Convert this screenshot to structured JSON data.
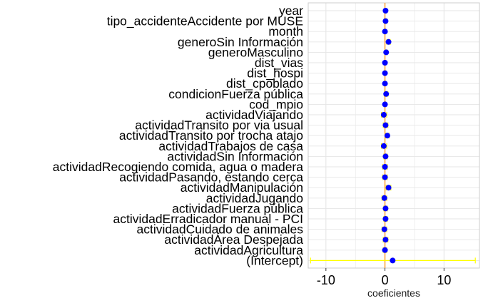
{
  "chart_data": {
    "type": "dot-whisker",
    "title": "",
    "xlabel": "coeficientes",
    "ylabel": "",
    "xlim": [
      -13,
      16
    ],
    "x_ticks": [
      -10,
      0,
      10
    ],
    "x_tick_labels": [
      "-10",
      "0",
      "10"
    ],
    "grid": true,
    "legend": "none",
    "reference_line_x": 0,
    "colors": {
      "point": "#0000ff",
      "interval": "#ffff00",
      "reference_line": "#ff8c00",
      "grid": "#e6e6e6",
      "panel_border": "#cccccc"
    },
    "terms": [
      {
        "label": "year",
        "estimate": 0.1,
        "low": 0.0,
        "high": 0.2
      },
      {
        "label": "tipo_accidenteAccidente por MUSE",
        "estimate": 0.1,
        "low": -0.1,
        "high": 0.3
      },
      {
        "label": "month",
        "estimate": 0.0,
        "low": -0.1,
        "high": 0.1
      },
      {
        "label": "generoSin Información",
        "estimate": 0.6,
        "low": 0.3,
        "high": 0.9
      },
      {
        "label": "generoMasculino",
        "estimate": 0.2,
        "low": 0.0,
        "high": 0.4
      },
      {
        "label": "dist_vias",
        "estimate": 0.0,
        "low": -0.1,
        "high": 0.1
      },
      {
        "label": "dist_hospi",
        "estimate": 0.0,
        "low": -0.1,
        "high": 0.1
      },
      {
        "label": "dist_cpoblado",
        "estimate": 0.0,
        "low": -0.1,
        "high": 0.1
      },
      {
        "label": "condicionFuerza pública",
        "estimate": 0.2,
        "low": -0.1,
        "high": 0.5
      },
      {
        "label": "cod_mpio",
        "estimate": 0.0,
        "low": -0.1,
        "high": 0.1
      },
      {
        "label": "actividadViajando",
        "estimate": -0.2,
        "low": -0.6,
        "high": 0.3
      },
      {
        "label": "actividadTransito por via usual",
        "estimate": 0.1,
        "low": -0.3,
        "high": 0.5
      },
      {
        "label": "actividadTransito por trocha atajo",
        "estimate": 0.4,
        "low": 0.1,
        "high": 0.7
      },
      {
        "label": "actividadTrabajos de casa",
        "estimate": -0.2,
        "low": -0.6,
        "high": 0.3
      },
      {
        "label": "actividadSin Información",
        "estimate": 0.1,
        "low": -0.2,
        "high": 0.4
      },
      {
        "label": "actividadRecogiendo comida, agua o  madera",
        "estimate": 0.0,
        "low": -0.4,
        "high": 0.4
      },
      {
        "label": "actividadPasando, estando cerca",
        "estimate": 0.0,
        "low": -0.4,
        "high": 0.4
      },
      {
        "label": "actividadManipulación",
        "estimate": 0.6,
        "low": 0.2,
        "high": 1.0
      },
      {
        "label": "actividadJugando",
        "estimate": -0.1,
        "low": -0.5,
        "high": 0.3
      },
      {
        "label": "actividadFuerza pública",
        "estimate": 0.1,
        "low": -0.2,
        "high": 0.4
      },
      {
        "label": "actividadErradicador manual - PCI",
        "estimate": 0.1,
        "low": -0.2,
        "high": 0.4
      },
      {
        "label": "actividadCuidado de animales",
        "estimate": -0.1,
        "low": -0.5,
        "high": 0.3
      },
      {
        "label": "actividadÁrea Despejada",
        "estimate": 0.1,
        "low": -0.3,
        "high": 0.5
      },
      {
        "label": "actividadAgricultura",
        "estimate": 0.0,
        "low": -0.3,
        "high": 0.3
      },
      {
        "label": "(Intercept)",
        "estimate": 1.3,
        "low": -12.6,
        "high": 15.3
      }
    ]
  }
}
